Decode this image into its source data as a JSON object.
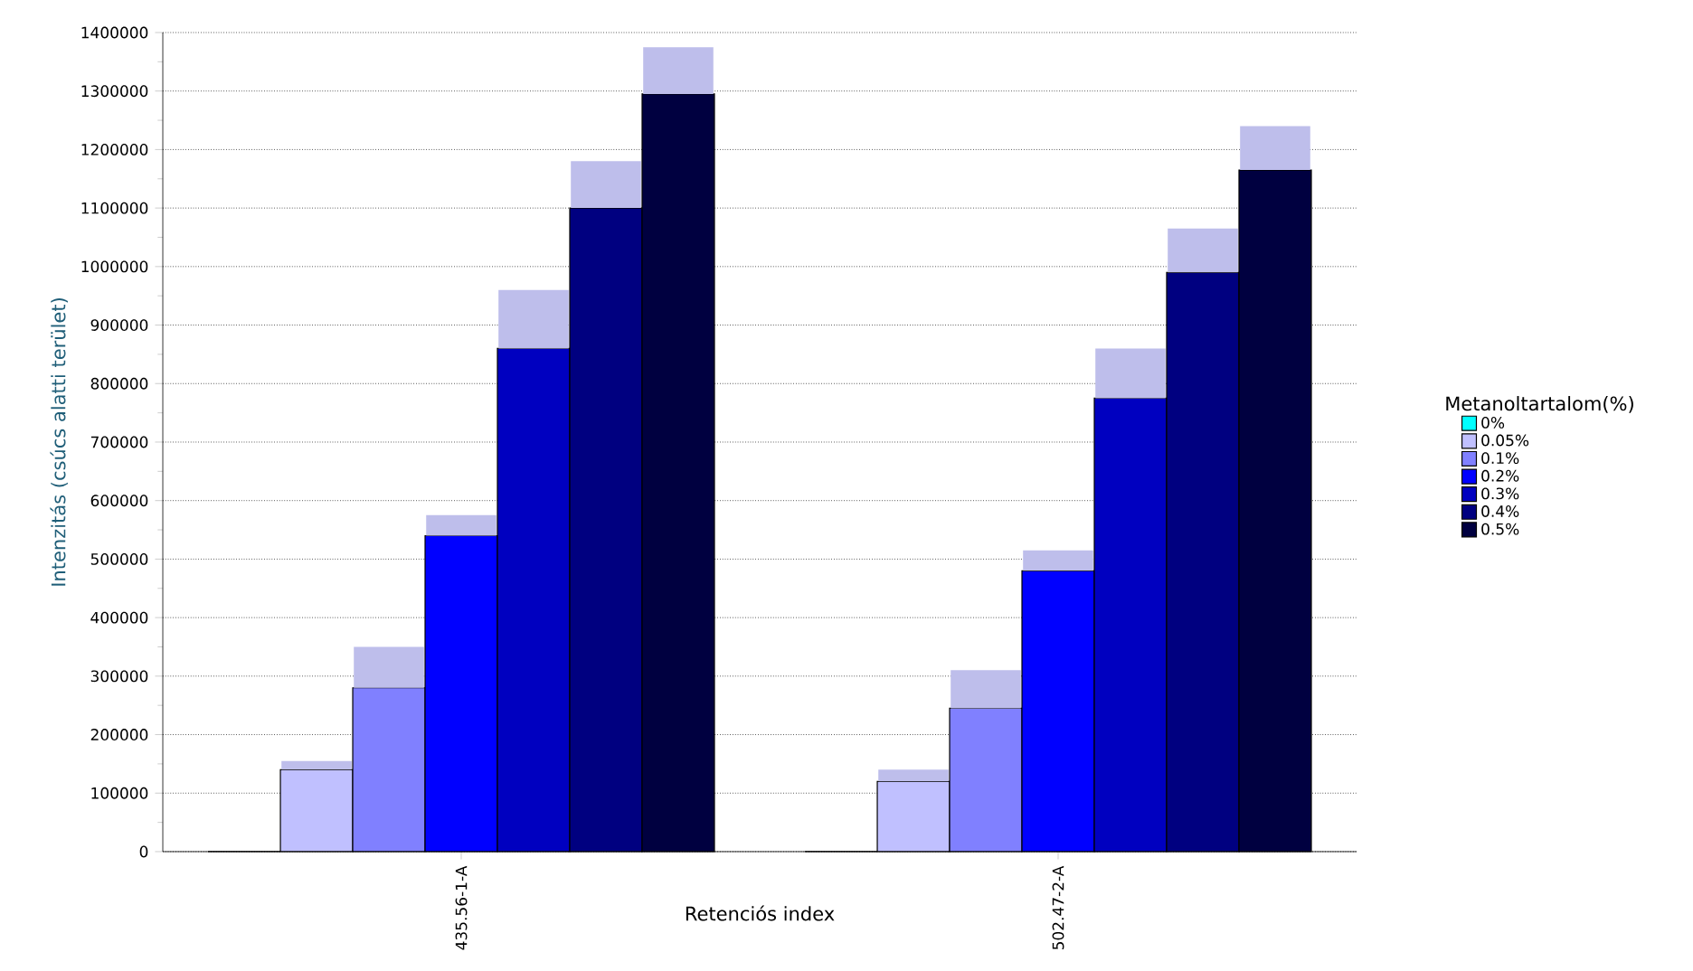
{
  "chart_data": {
    "type": "bar",
    "xlabel": "Retenciós index",
    "ylabel": "Intenzitás (csúcs alatti terület)",
    "legend_title": "Metanoltartalom(%)",
    "categories": [
      "435.56-1-A",
      "502.47-2-A"
    ],
    "ylim": [
      0,
      1400000
    ],
    "yticks": [
      0,
      100000,
      200000,
      300000,
      400000,
      500000,
      600000,
      700000,
      800000,
      900000,
      1000000,
      1100000,
      1200000,
      1300000,
      1400000
    ],
    "grid": "y",
    "legend": "right",
    "series": [
      {
        "name": "0%",
        "color": "#00ffff",
        "values": [
          0,
          0
        ]
      },
      {
        "name": "0.05%",
        "color": "#c0c0ff",
        "values": [
          140000,
          120000
        ],
        "errors": [
          [
            140000,
            155000
          ],
          [
            120000,
            140000
          ]
        ]
      },
      {
        "name": "0.1%",
        "color": "#8080ff",
        "values": [
          280000,
          245000
        ],
        "errors": [
          [
            280000,
            350000
          ],
          [
            245000,
            310000
          ]
        ]
      },
      {
        "name": "0.2%",
        "color": "#0000ff",
        "values": [
          540000,
          480000
        ],
        "errors": [
          [
            540000,
            575000
          ],
          [
            480000,
            515000
          ]
        ]
      },
      {
        "name": "0.3%",
        "color": "#0000c0",
        "values": [
          860000,
          775000
        ],
        "errors": [
          [
            860000,
            960000
          ],
          [
            775000,
            860000
          ]
        ]
      },
      {
        "name": "0.4%",
        "color": "#000080",
        "values": [
          1100000,
          990000
        ],
        "errors": [
          [
            1100000,
            1180000
          ],
          [
            990000,
            1065000
          ]
        ]
      },
      {
        "name": "0.5%",
        "color": "#000040",
        "values": [
          1295000,
          1165000
        ],
        "errors": [
          [
            1295000,
            1375000
          ],
          [
            1165000,
            1240000
          ]
        ]
      }
    ]
  }
}
